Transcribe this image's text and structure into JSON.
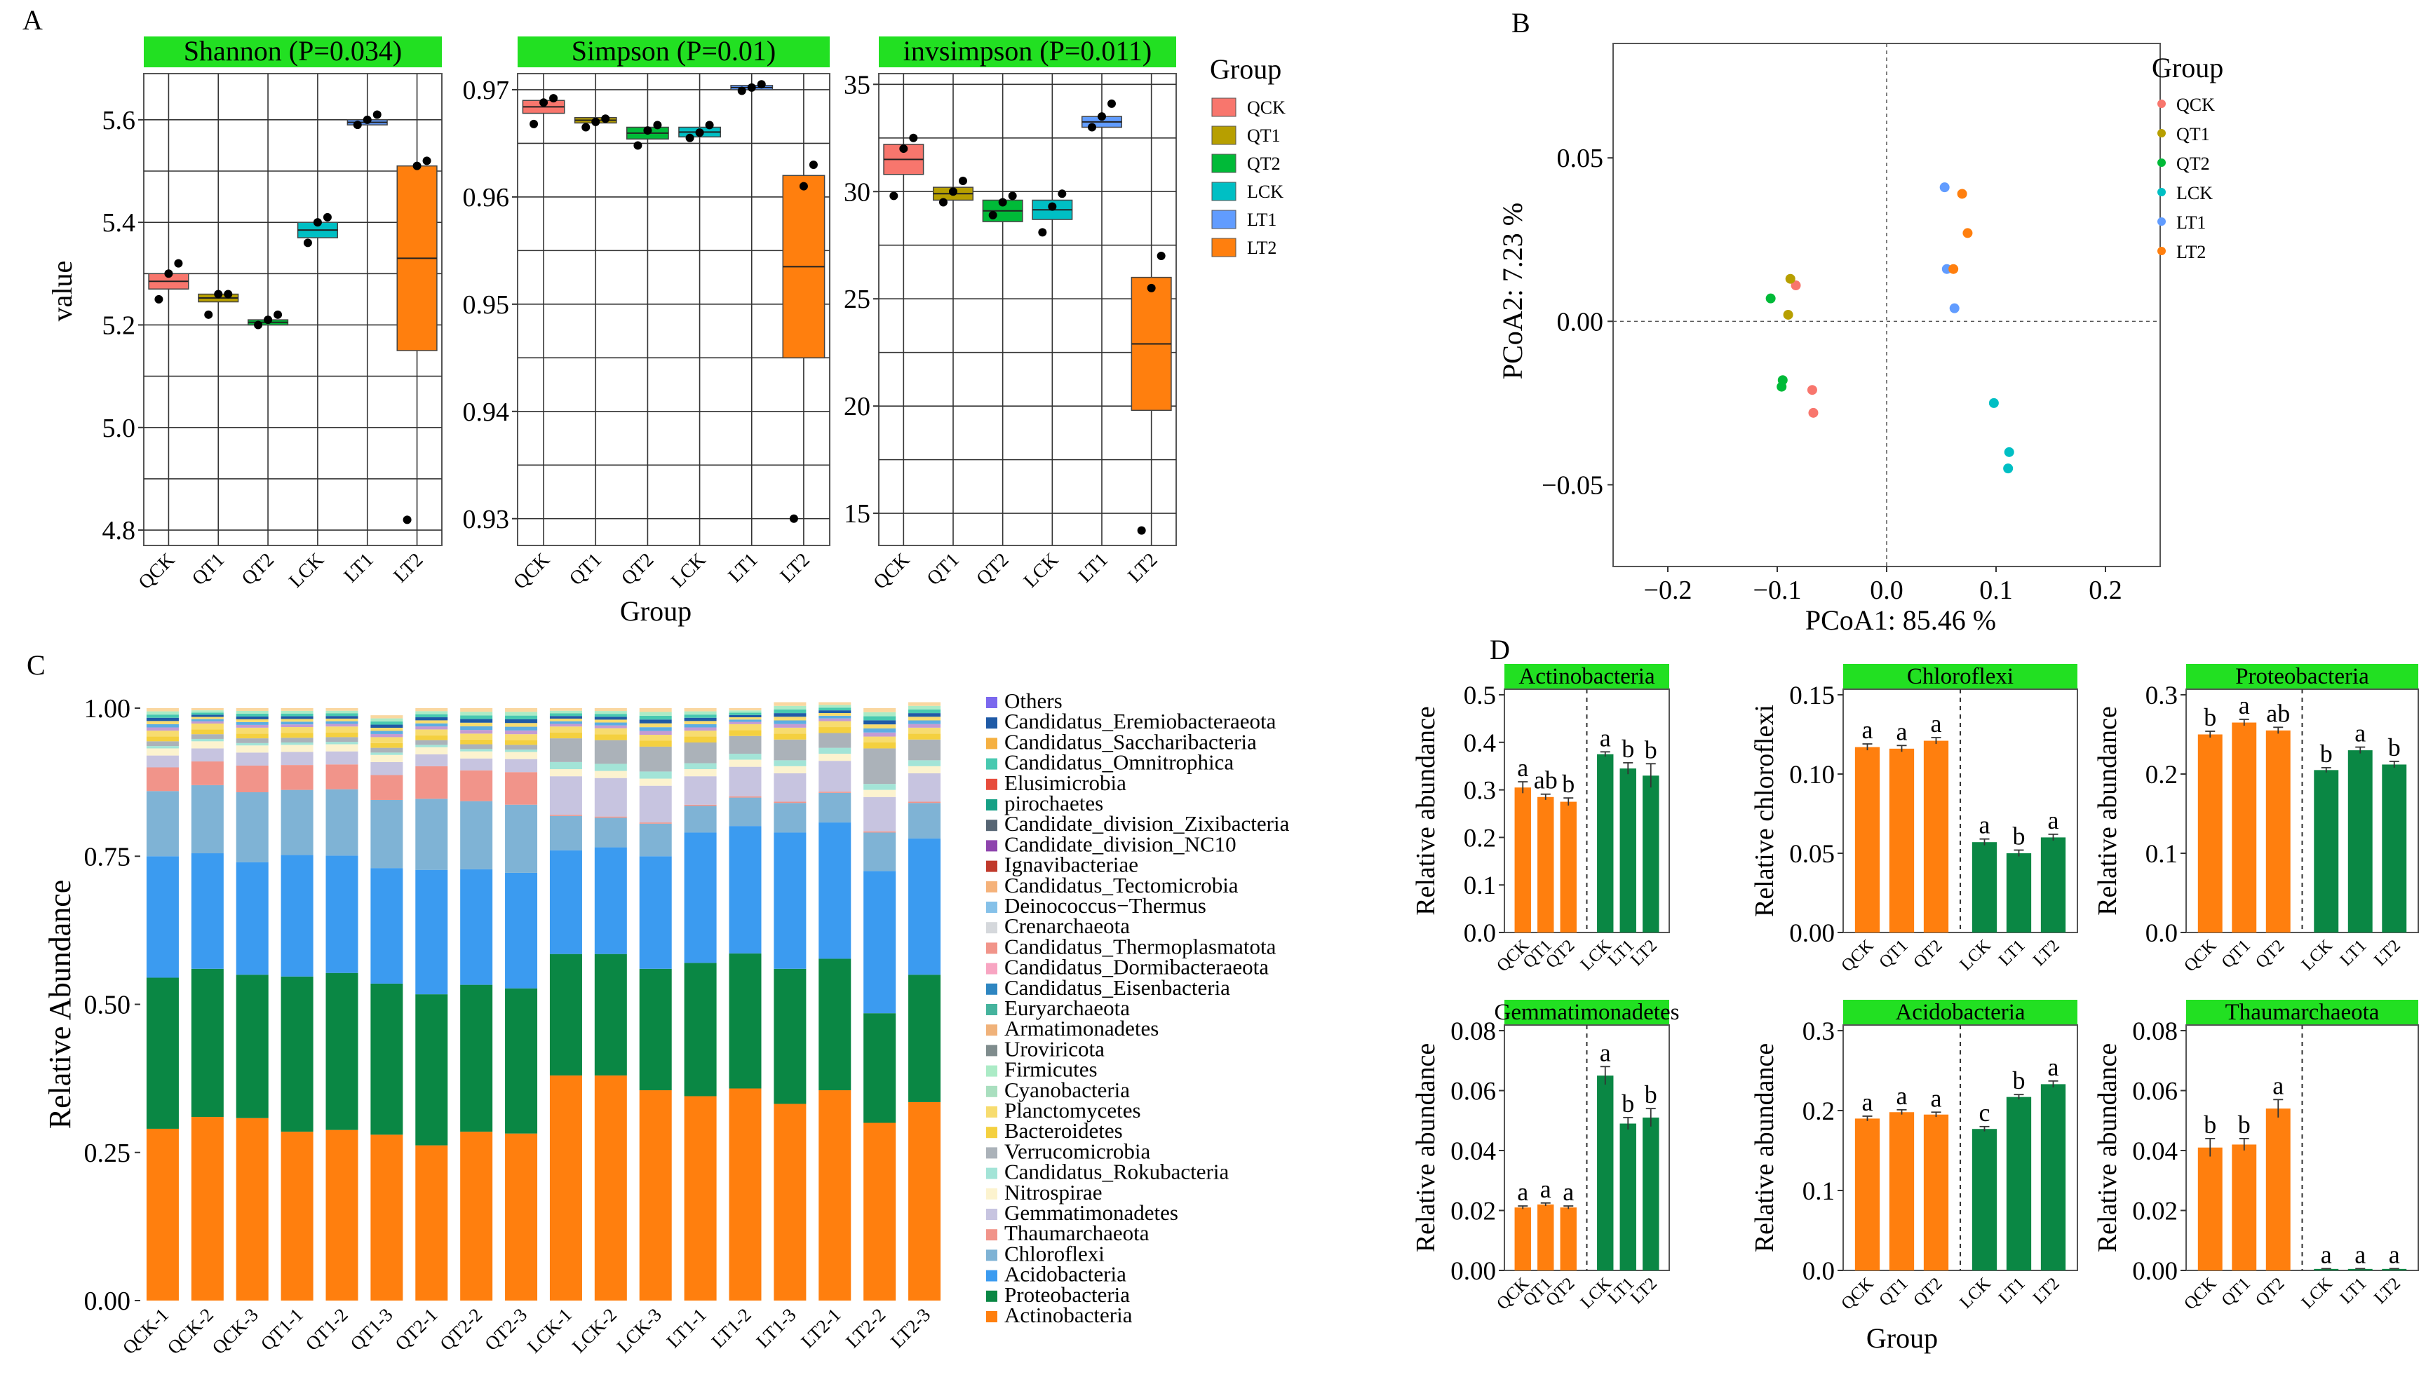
{
  "colors": {
    "QCK": "#F8766D",
    "QT1": "#B79F00",
    "QT2": "#00BA38",
    "LCK": "#00BFC4",
    "LT1": "#619CFF",
    "LT2": "#FF7F0E",
    "strip": "#22E022",
    "orange": "#FF7F0E",
    "green": "#0A8744"
  },
  "panelA": {
    "label": "A",
    "ylabel": "value",
    "xlabel": "Group",
    "groups": [
      "QCK",
      "QT1",
      "QT2",
      "LCK",
      "LT1",
      "LT2"
    ],
    "legend": {
      "title": "Group",
      "items": [
        "QCK",
        "QT1",
        "QT2",
        "LCK",
        "LT1",
        "LT2"
      ]
    },
    "facets": [
      {
        "title": "Shannon (P=0.034)",
        "ylim": [
          4.77,
          5.69
        ],
        "yticks": [
          4.8,
          5.0,
          5.2,
          5.4,
          5.6
        ],
        "ytick_labels": [
          "4.8",
          "5.0",
          "5.2",
          "5.4",
          "5.6"
        ],
        "ygrid": [
          4.8,
          4.9,
          5.0,
          5.1,
          5.2,
          5.3,
          5.4,
          5.5,
          5.6
        ],
        "boxes": [
          [
            5.27,
            5.3
          ],
          [
            5.245,
            5.26
          ],
          [
            5.2,
            5.21
          ],
          [
            5.37,
            5.4
          ],
          [
            5.59,
            5.6
          ],
          [
            5.15,
            5.51
          ]
        ],
        "points": [
          [
            5.25,
            5.3,
            5.32
          ],
          [
            5.22,
            5.26,
            5.26
          ],
          [
            5.2,
            5.21,
            5.22
          ],
          [
            5.36,
            5.4,
            5.41
          ],
          [
            5.59,
            5.6,
            5.61
          ],
          [
            4.82,
            5.51,
            5.52
          ]
        ]
      },
      {
        "title": "Simpson (P=0.01)",
        "ylim": [
          0.9275,
          0.9715
        ],
        "yticks": [
          0.93,
          0.94,
          0.95,
          0.96,
          0.97
        ],
        "ytick_labels": [
          "0.93",
          "0.94",
          "0.95",
          "0.96",
          "0.97"
        ],
        "ygrid": [
          0.93,
          0.935,
          0.94,
          0.945,
          0.95,
          0.955,
          0.96,
          0.965,
          0.97
        ],
        "boxes": [
          [
            0.9678,
            0.969
          ],
          [
            0.9669,
            0.9674
          ],
          [
            0.9654,
            0.9665
          ],
          [
            0.9656,
            0.9665
          ],
          [
            0.97,
            0.9704
          ],
          [
            0.945,
            0.962
          ]
        ],
        "points": [
          [
            0.9668,
            0.9688,
            0.9692
          ],
          [
            0.9665,
            0.967,
            0.9673
          ],
          [
            0.9648,
            0.9662,
            0.9667
          ],
          [
            0.9655,
            0.966,
            0.9667
          ],
          [
            0.9699,
            0.9702,
            0.9705
          ],
          [
            0.93,
            0.961,
            0.963
          ]
        ]
      },
      {
        "title": "invsimpson (P=0.011)",
        "ylim": [
          13.5,
          35.5
        ],
        "yticks": [
          15,
          20,
          25,
          30,
          35
        ],
        "ytick_labels": [
          "15",
          "20",
          "25",
          "30",
          "35"
        ],
        "ygrid": [
          15,
          17.5,
          20,
          22.5,
          25,
          27.5,
          30,
          32.5,
          35
        ],
        "boxes": [
          [
            30.8,
            32.2
          ],
          [
            29.6,
            30.2
          ],
          [
            28.6,
            29.6
          ],
          [
            28.7,
            29.6
          ],
          [
            33.0,
            33.5
          ],
          [
            19.8,
            26.0
          ]
        ],
        "points": [
          [
            29.8,
            32.0,
            32.5
          ],
          [
            29.5,
            30.0,
            30.5
          ],
          [
            28.9,
            29.5,
            29.8
          ],
          [
            28.1,
            29.3,
            29.9
          ],
          [
            33.0,
            33.5,
            34.1
          ],
          [
            14.2,
            25.5,
            27.0
          ]
        ]
      }
    ]
  },
  "panelB": {
    "label": "B",
    "xlabel": "PCoA1:  85.46 %",
    "ylabel": "PCoA2:  7.23 %",
    "xlim": [
      -0.25,
      0.25
    ],
    "ylim": [
      -0.075,
      0.085
    ],
    "xticks": [
      -0.2,
      -0.1,
      0.0,
      0.1,
      0.2
    ],
    "xtick_labels": [
      "−0.2",
      "−0.1",
      "0.0",
      "0.1",
      "0.2"
    ],
    "yticks": [
      -0.05,
      0.0,
      0.05
    ],
    "ytick_labels": [
      "−0.05",
      "0.00",
      "0.05"
    ],
    "legend": {
      "title": "Group",
      "items": [
        "QCK",
        "QT1",
        "QT2",
        "LCK",
        "LT1",
        "LT2"
      ]
    },
    "points": [
      {
        "g": "QCK",
        "x": -0.083,
        "y": 0.011
      },
      {
        "g": "QCK",
        "x": -0.068,
        "y": -0.021
      },
      {
        "g": "QCK",
        "x": -0.067,
        "y": -0.028
      },
      {
        "g": "QT1",
        "x": -0.088,
        "y": 0.013
      },
      {
        "g": "QT1",
        "x": -0.09,
        "y": 0.002
      },
      {
        "g": "QT2",
        "x": -0.106,
        "y": 0.007
      },
      {
        "g": "QT2",
        "x": -0.095,
        "y": -0.018
      },
      {
        "g": "QT2",
        "x": -0.096,
        "y": -0.02
      },
      {
        "g": "LCK",
        "x": 0.098,
        "y": -0.025
      },
      {
        "g": "LCK",
        "x": 0.112,
        "y": -0.04
      },
      {
        "g": "LCK",
        "x": 0.111,
        "y": -0.045
      },
      {
        "g": "LT1",
        "x": 0.053,
        "y": 0.041
      },
      {
        "g": "LT1",
        "x": 0.055,
        "y": 0.016
      },
      {
        "g": "LT1",
        "x": 0.062,
        "y": 0.004
      },
      {
        "g": "LT2",
        "x": 0.069,
        "y": 0.039
      },
      {
        "g": "LT2",
        "x": 0.074,
        "y": 0.027
      },
      {
        "g": "LT2",
        "x": 0.061,
        "y": 0.016
      }
    ]
  },
  "panelC": {
    "label": "C",
    "ylabel": "Relative Abundance",
    "ylim": [
      0,
      1
    ],
    "yticks": [
      0,
      0.25,
      0.5,
      0.75,
      1.0
    ],
    "ytick_labels": [
      "0.00",
      "0.25",
      "0.50",
      "0.75",
      "1.00"
    ],
    "samples": [
      "QCK-1",
      "QCK-2",
      "QCK-3",
      "QT1-1",
      "QT1-2",
      "QT1-3",
      "QT2-1",
      "QT2-2",
      "QT2-3",
      "LCK-1",
      "LCK-2",
      "LCK-3",
      "LT1-1",
      "LT1-2",
      "LT1-3",
      "LT2-1",
      "LT2-2",
      "LT2-3"
    ],
    "legend": [
      "Others",
      "Candidatus_Eremiobacteraeota",
      "Candidatus_Saccharibacteria",
      "Candidatus_Omnitrophica",
      "Elusimicrobia",
      "pirochaetes",
      "Candidate_division_Zixibacteria",
      "Candidate_division_NC10",
      "Ignavibacteriae",
      "Candidatus_Tectomicrobia",
      "Deinococcus−Thermus",
      "Crenarchaeota",
      "Candidatus_Thermoplasmatota",
      "Candidatus_Dormibacteraeota",
      "Candidatus_Eisenbacteria",
      "Euryarchaeota",
      "Armatimonadetes",
      "Uroviricota",
      "Firmicutes",
      "Cyanobacteria",
      "Planctomycetes",
      "Bacteroidetes",
      "Verrucomicrobia",
      "Candidatus_Rokubacteria",
      "Nitrospirae",
      "Gemmatimonadetes",
      "Thaumarchaeota",
      "Chloroflexi",
      "Acidobacteria",
      "Proteobacteria",
      "Actinobacteria"
    ],
    "legend_colors": [
      "#7B68EE",
      "#1F5AA6",
      "#F5B041",
      "#48C9B0",
      "#E74C3C",
      "#16A085",
      "#566573",
      "#8E44AD",
      "#C0392B",
      "#F5B27A",
      "#85C1E9",
      "#D5D8DC",
      "#F1948A",
      "#F8A5C2",
      "#2E86C1",
      "#45B39D",
      "#F0B27A",
      "#7F8C8D",
      "#ABEBC6",
      "#A9DFBF",
      "#F7DC6F",
      "#F4D03F",
      "#ABB2B9",
      "#A3E4D7",
      "#FCF3CF",
      "#C7C4E0",
      "#F1948A",
      "#7FB3D5",
      "#3B9BF0",
      "#0A8744",
      "#FF7F0E"
    ],
    "series": [
      {
        "name": "Actinobacteria",
        "values": [
          0.29,
          0.31,
          0.308,
          0.285,
          0.288,
          0.28,
          0.262,
          0.285,
          0.282,
          0.38,
          0.38,
          0.355,
          0.345,
          0.358,
          0.332,
          0.355,
          0.3,
          0.335
        ]
      },
      {
        "name": "Proteobacteria",
        "values": [
          0.255,
          0.25,
          0.242,
          0.262,
          0.265,
          0.255,
          0.255,
          0.248,
          0.245,
          0.205,
          0.205,
          0.205,
          0.225,
          0.228,
          0.228,
          0.222,
          0.185,
          0.215
        ]
      },
      {
        "name": "Acidobacteria",
        "values": [
          0.205,
          0.195,
          0.19,
          0.205,
          0.198,
          0.195,
          0.21,
          0.195,
          0.195,
          0.175,
          0.18,
          0.19,
          0.22,
          0.215,
          0.23,
          0.23,
          0.24,
          0.23
        ]
      },
      {
        "name": "Chloroflexi",
        "values": [
          0.11,
          0.115,
          0.118,
          0.11,
          0.112,
          0.115,
          0.12,
          0.115,
          0.115,
          0.058,
          0.05,
          0.055,
          0.045,
          0.048,
          0.05,
          0.05,
          0.065,
          0.06
        ]
      },
      {
        "name": "Thaumarchaeota",
        "values": [
          0.04,
          0.04,
          0.045,
          0.042,
          0.042,
          0.042,
          0.055,
          0.052,
          0.055,
          0.002,
          0.002,
          0.002,
          0.002,
          0.002,
          0.002,
          0.002,
          0.002,
          0.002
        ]
      },
      {
        "name": "Gemmatimonadetes",
        "values": [
          0.02,
          0.022,
          0.022,
          0.022,
          0.022,
          0.022,
          0.02,
          0.02,
          0.022,
          0.065,
          0.065,
          0.062,
          0.048,
          0.05,
          0.048,
          0.052,
          0.058,
          0.048
        ]
      },
      {
        "name": "Nitrospirae",
        "values": [
          0.012,
          0.012,
          0.012,
          0.012,
          0.012,
          0.012,
          0.012,
          0.012,
          0.012,
          0.012,
          0.012,
          0.012,
          0.012,
          0.012,
          0.012,
          0.012,
          0.012,
          0.012
        ]
      },
      {
        "name": "Candidatus_Rokubacteria",
        "values": [
          0.004,
          0.004,
          0.004,
          0.004,
          0.004,
          0.004,
          0.004,
          0.004,
          0.004,
          0.012,
          0.012,
          0.012,
          0.01,
          0.01,
          0.01,
          0.01,
          0.01,
          0.01
        ]
      },
      {
        "name": "Verrucomicrobia",
        "values": [
          0.008,
          0.008,
          0.008,
          0.008,
          0.008,
          0.008,
          0.008,
          0.008,
          0.008,
          0.04,
          0.04,
          0.042,
          0.035,
          0.03,
          0.035,
          0.025,
          0.06,
          0.035
        ]
      },
      {
        "name": "Bacteroidetes",
        "values": [
          0.008,
          0.008,
          0.008,
          0.008,
          0.008,
          0.008,
          0.008,
          0.008,
          0.008,
          0.01,
          0.01,
          0.01,
          0.01,
          0.01,
          0.01,
          0.01,
          0.01,
          0.01
        ]
      },
      {
        "name": "Planctomycetes",
        "values": [
          0.01,
          0.01,
          0.01,
          0.01,
          0.01,
          0.01,
          0.01,
          0.01,
          0.01,
          0.01,
          0.01,
          0.01,
          0.01,
          0.01,
          0.01,
          0.01,
          0.01,
          0.01
        ]
      },
      {
        "name": "Others",
        "values": [
          0.038,
          0.026,
          0.033,
          0.032,
          0.031,
          0.037,
          0.036,
          0.043,
          0.044,
          0.031,
          0.034,
          0.045,
          0.038,
          0.027,
          0.043,
          0.032,
          0.048,
          0.043
        ]
      }
    ]
  },
  "panelD": {
    "label": "D",
    "xlabel": "Group",
    "groups": [
      "QCK",
      "QT1",
      "QT2",
      "LCK",
      "LT1",
      "LT2"
    ],
    "subplots": [
      {
        "title": "Actinobacteria",
        "ylabel": "Relative abundance",
        "ylim": [
          0,
          0.5
        ],
        "yticks": [
          0.0,
          0.1,
          0.2,
          0.3,
          0.4,
          0.5
        ],
        "ytick_labels": [
          "0.0",
          "0.1",
          "0.2",
          "0.3",
          "0.4",
          "0.5"
        ],
        "values": [
          0.305,
          0.285,
          0.275,
          0.375,
          0.345,
          0.33
        ],
        "errors": [
          0.012,
          0.006,
          0.008,
          0.005,
          0.012,
          0.025
        ],
        "letters": [
          "a",
          "ab",
          "b",
          "a",
          "b",
          "b"
        ]
      },
      {
        "title": "Chloroflexi",
        "ylabel": "Relative chloroflexi",
        "ylim": [
          0,
          0.15
        ],
        "yticks": [
          0.0,
          0.05,
          0.1,
          0.15
        ],
        "ytick_labels": [
          "0.00",
          "0.05",
          "0.10",
          "0.15"
        ],
        "values": [
          0.117,
          0.116,
          0.121,
          0.057,
          0.05,
          0.06
        ],
        "errors": [
          0.002,
          0.002,
          0.002,
          0.002,
          0.002,
          0.002
        ],
        "letters": [
          "a",
          "a",
          "a",
          "a",
          "b",
          "a"
        ]
      },
      {
        "title": "Proteobacteria",
        "ylabel": "Relative abundance",
        "ylim": [
          0,
          0.3
        ],
        "yticks": [
          0.0,
          0.1,
          0.2,
          0.3
        ],
        "ytick_labels": [
          "0.0",
          "0.1",
          "0.2",
          "0.3"
        ],
        "values": [
          0.25,
          0.265,
          0.255,
          0.205,
          0.23,
          0.212
        ],
        "errors": [
          0.004,
          0.004,
          0.004,
          0.003,
          0.004,
          0.004
        ],
        "letters": [
          "b",
          "a",
          "ab",
          "b",
          "a",
          "b"
        ]
      },
      {
        "title": "Gemmatimonadetes",
        "ylabel": "Relative abundance",
        "ylim": [
          0,
          0.08
        ],
        "yticks": [
          0.0,
          0.02,
          0.04,
          0.06,
          0.08
        ],
        "ytick_labels": [
          "0.00",
          "0.02",
          "0.04",
          "0.06",
          "0.08"
        ],
        "values": [
          0.021,
          0.022,
          0.021,
          0.065,
          0.049,
          0.051
        ],
        "errors": [
          0.0005,
          0.0005,
          0.0005,
          0.003,
          0.002,
          0.003
        ],
        "letters": [
          "a",
          "a",
          "a",
          "a",
          "b",
          "b"
        ]
      },
      {
        "title": "Acidobacteria",
        "ylabel": "Relative abundance",
        "ylim": [
          0,
          0.3
        ],
        "yticks": [
          0.0,
          0.1,
          0.2,
          0.3
        ],
        "ytick_labels": [
          "0.0",
          "0.1",
          "0.2",
          "0.3"
        ],
        "values": [
          0.19,
          0.198,
          0.195,
          0.177,
          0.217,
          0.233
        ],
        "errors": [
          0.003,
          0.003,
          0.003,
          0.003,
          0.003,
          0.004
        ],
        "letters": [
          "a",
          "a",
          "a",
          "c",
          "b",
          "a"
        ]
      },
      {
        "title": "Thaumarchaeota",
        "ylabel": "Relative abundance",
        "ylim": [
          0,
          0.08
        ],
        "yticks": [
          0.0,
          0.02,
          0.04,
          0.06,
          0.08
        ],
        "ytick_labels": [
          "0.00",
          "0.02",
          "0.04",
          "0.06",
          "0.08"
        ],
        "values": [
          0.041,
          0.042,
          0.054,
          0.0005,
          0.0005,
          0.0005
        ],
        "errors": [
          0.003,
          0.002,
          0.003,
          0.0001,
          0.0001,
          0.0001
        ],
        "letters": [
          "b",
          "b",
          "a",
          "a",
          "a",
          "a"
        ]
      }
    ]
  }
}
